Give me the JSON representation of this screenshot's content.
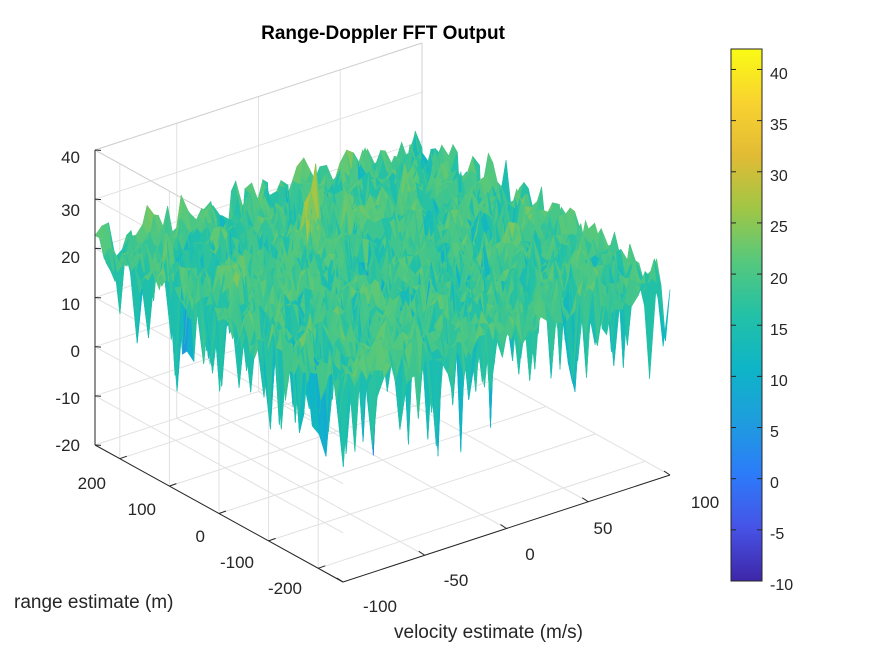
{
  "chart_data": {
    "type": "surface",
    "title": "Range-Doppler FFT Output",
    "xlabel": "velocity estimate (m/s)",
    "ylabel": "range estimate (m)",
    "zlabel": "",
    "xlim": [
      -100,
      100
    ],
    "ylim": [
      -250,
      250
    ],
    "zlim": [
      -20,
      40
    ],
    "x_ticks": [
      "-100",
      "-50",
      "0",
      "50",
      "100"
    ],
    "y_ticks": [
      "200",
      "100",
      "0",
      "-100",
      "-200"
    ],
    "z_ticks": [
      "40",
      "30",
      "20",
      "10",
      "0",
      "-10",
      "-20"
    ],
    "grid": true,
    "colormap": "parula",
    "colorbar": {
      "limits": [
        -10,
        42
      ],
      "ticks": [
        "40",
        "35",
        "30",
        "25",
        "20",
        "15",
        "10",
        "5",
        "0",
        "-5",
        "-10"
      ],
      "location": "right"
    },
    "noise_floor_db": 20,
    "peak": {
      "velocity": -10,
      "range": 110,
      "value": 42
    }
  }
}
